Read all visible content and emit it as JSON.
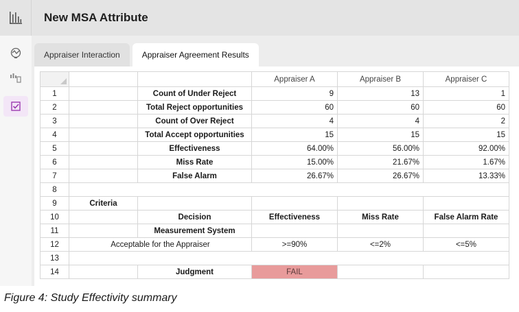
{
  "app": {
    "title": "New MSA Attribute"
  },
  "tabs": [
    {
      "label": "Appraiser Interaction",
      "active": false
    },
    {
      "label": "Appraiser Agreement Results",
      "active": true
    }
  ],
  "sidebar": {
    "items": [
      {
        "icon": "analysis-icon"
      },
      {
        "icon": "chart-settings-icon"
      },
      {
        "icon": "checklist-icon",
        "active": true
      }
    ]
  },
  "columns": [
    "Appraiser A",
    "Appraiser B",
    "Appraiser C"
  ],
  "rows": [
    {
      "n": "1",
      "label": "Count of Under Reject",
      "a": "9",
      "b": "13",
      "c": "1"
    },
    {
      "n": "2",
      "label": "Total Reject opportunities",
      "a": "60",
      "b": "60",
      "c": "60"
    },
    {
      "n": "3",
      "label": "Count of Over Reject",
      "a": "4",
      "b": "4",
      "c": "2"
    },
    {
      "n": "4",
      "label": "Total Accept opportunities",
      "a": "15",
      "b": "15",
      "c": "15"
    },
    {
      "n": "5",
      "label": "Effectiveness",
      "a": "64.00%",
      "b": "56.00%",
      "c": "92.00%"
    },
    {
      "n": "6",
      "label": "Miss Rate",
      "a": "15.00%",
      "b": "21.67%",
      "c": "1.67%"
    },
    {
      "n": "7",
      "label": "False Alarm",
      "a": "26.67%",
      "b": "26.67%",
      "c": "13.33%"
    }
  ],
  "row8": {
    "n": "8"
  },
  "criteria": {
    "n9": "9",
    "title": "Criteria",
    "n10": "10",
    "decision": "Decision",
    "effectiveness": "Effectiveness",
    "miss_rate": "Miss Rate",
    "false_alarm_rate": "False Alarm Rate",
    "n11": "11",
    "measurement_system": "Measurement System",
    "n12": "12",
    "acceptable_label": "Acceptable for the Appraiser",
    "eff_value": ">=90%",
    "miss_value": "<=2%",
    "fa_value": "<=5%",
    "n13": "13",
    "n14": "14",
    "judgment_label": "Judgment",
    "judgment_value": "FAIL",
    "fail_color": "#e89b9b"
  },
  "caption": "Figure 4: Study Effectivity summary"
}
